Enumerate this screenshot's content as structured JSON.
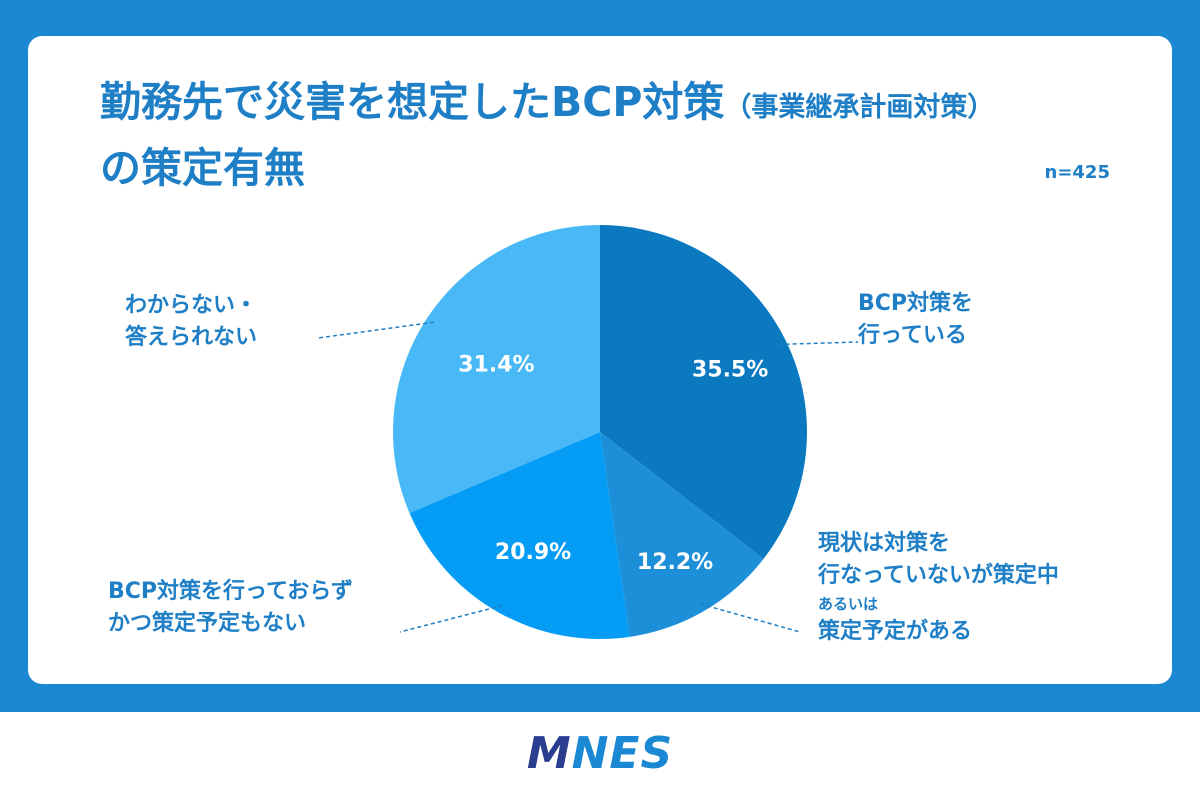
{
  "title": {
    "line1_main": "勤務先で災害を想定したBCP対策",
    "line1_sub": "（事業継承計画対策）",
    "line2": "の策定有無"
  },
  "sample_size": "n=425",
  "logo": {
    "m": "M",
    "rest": "NES"
  },
  "chart_data": {
    "type": "pie",
    "title": "勤務先で災害を想定したBCP対策（事業継承計画対策）の策定有無",
    "n": "n=425",
    "categories": [
      "BCP対策を行っている",
      "現状は対策を行なっていないが策定中あるいは策定予定がある",
      "BCP対策を行っておらずかつ策定予定もない",
      "わからない・答えられない"
    ],
    "values": [
      35.5,
      12.2,
      20.9,
      31.4
    ],
    "value_labels": [
      "35.5%",
      "12.2%",
      "20.9%",
      "31.4%"
    ],
    "colors": [
      "#0a79bf",
      "#1d8fd8",
      "#049cf5",
      "#49b8f7"
    ],
    "labels": [
      {
        "lines": [
          "BCP対策を",
          "行っている"
        ]
      },
      {
        "lines": [
          "現状は対策を",
          "行なっていないが策定中"
        ],
        "small": "あるいは",
        "last": "策定予定がある"
      },
      {
        "lines": [
          "BCP対策を行っておらず",
          "かつ策定予定もない"
        ]
      },
      {
        "lines": [
          "わからない・",
          "答えられない"
        ]
      }
    ]
  }
}
